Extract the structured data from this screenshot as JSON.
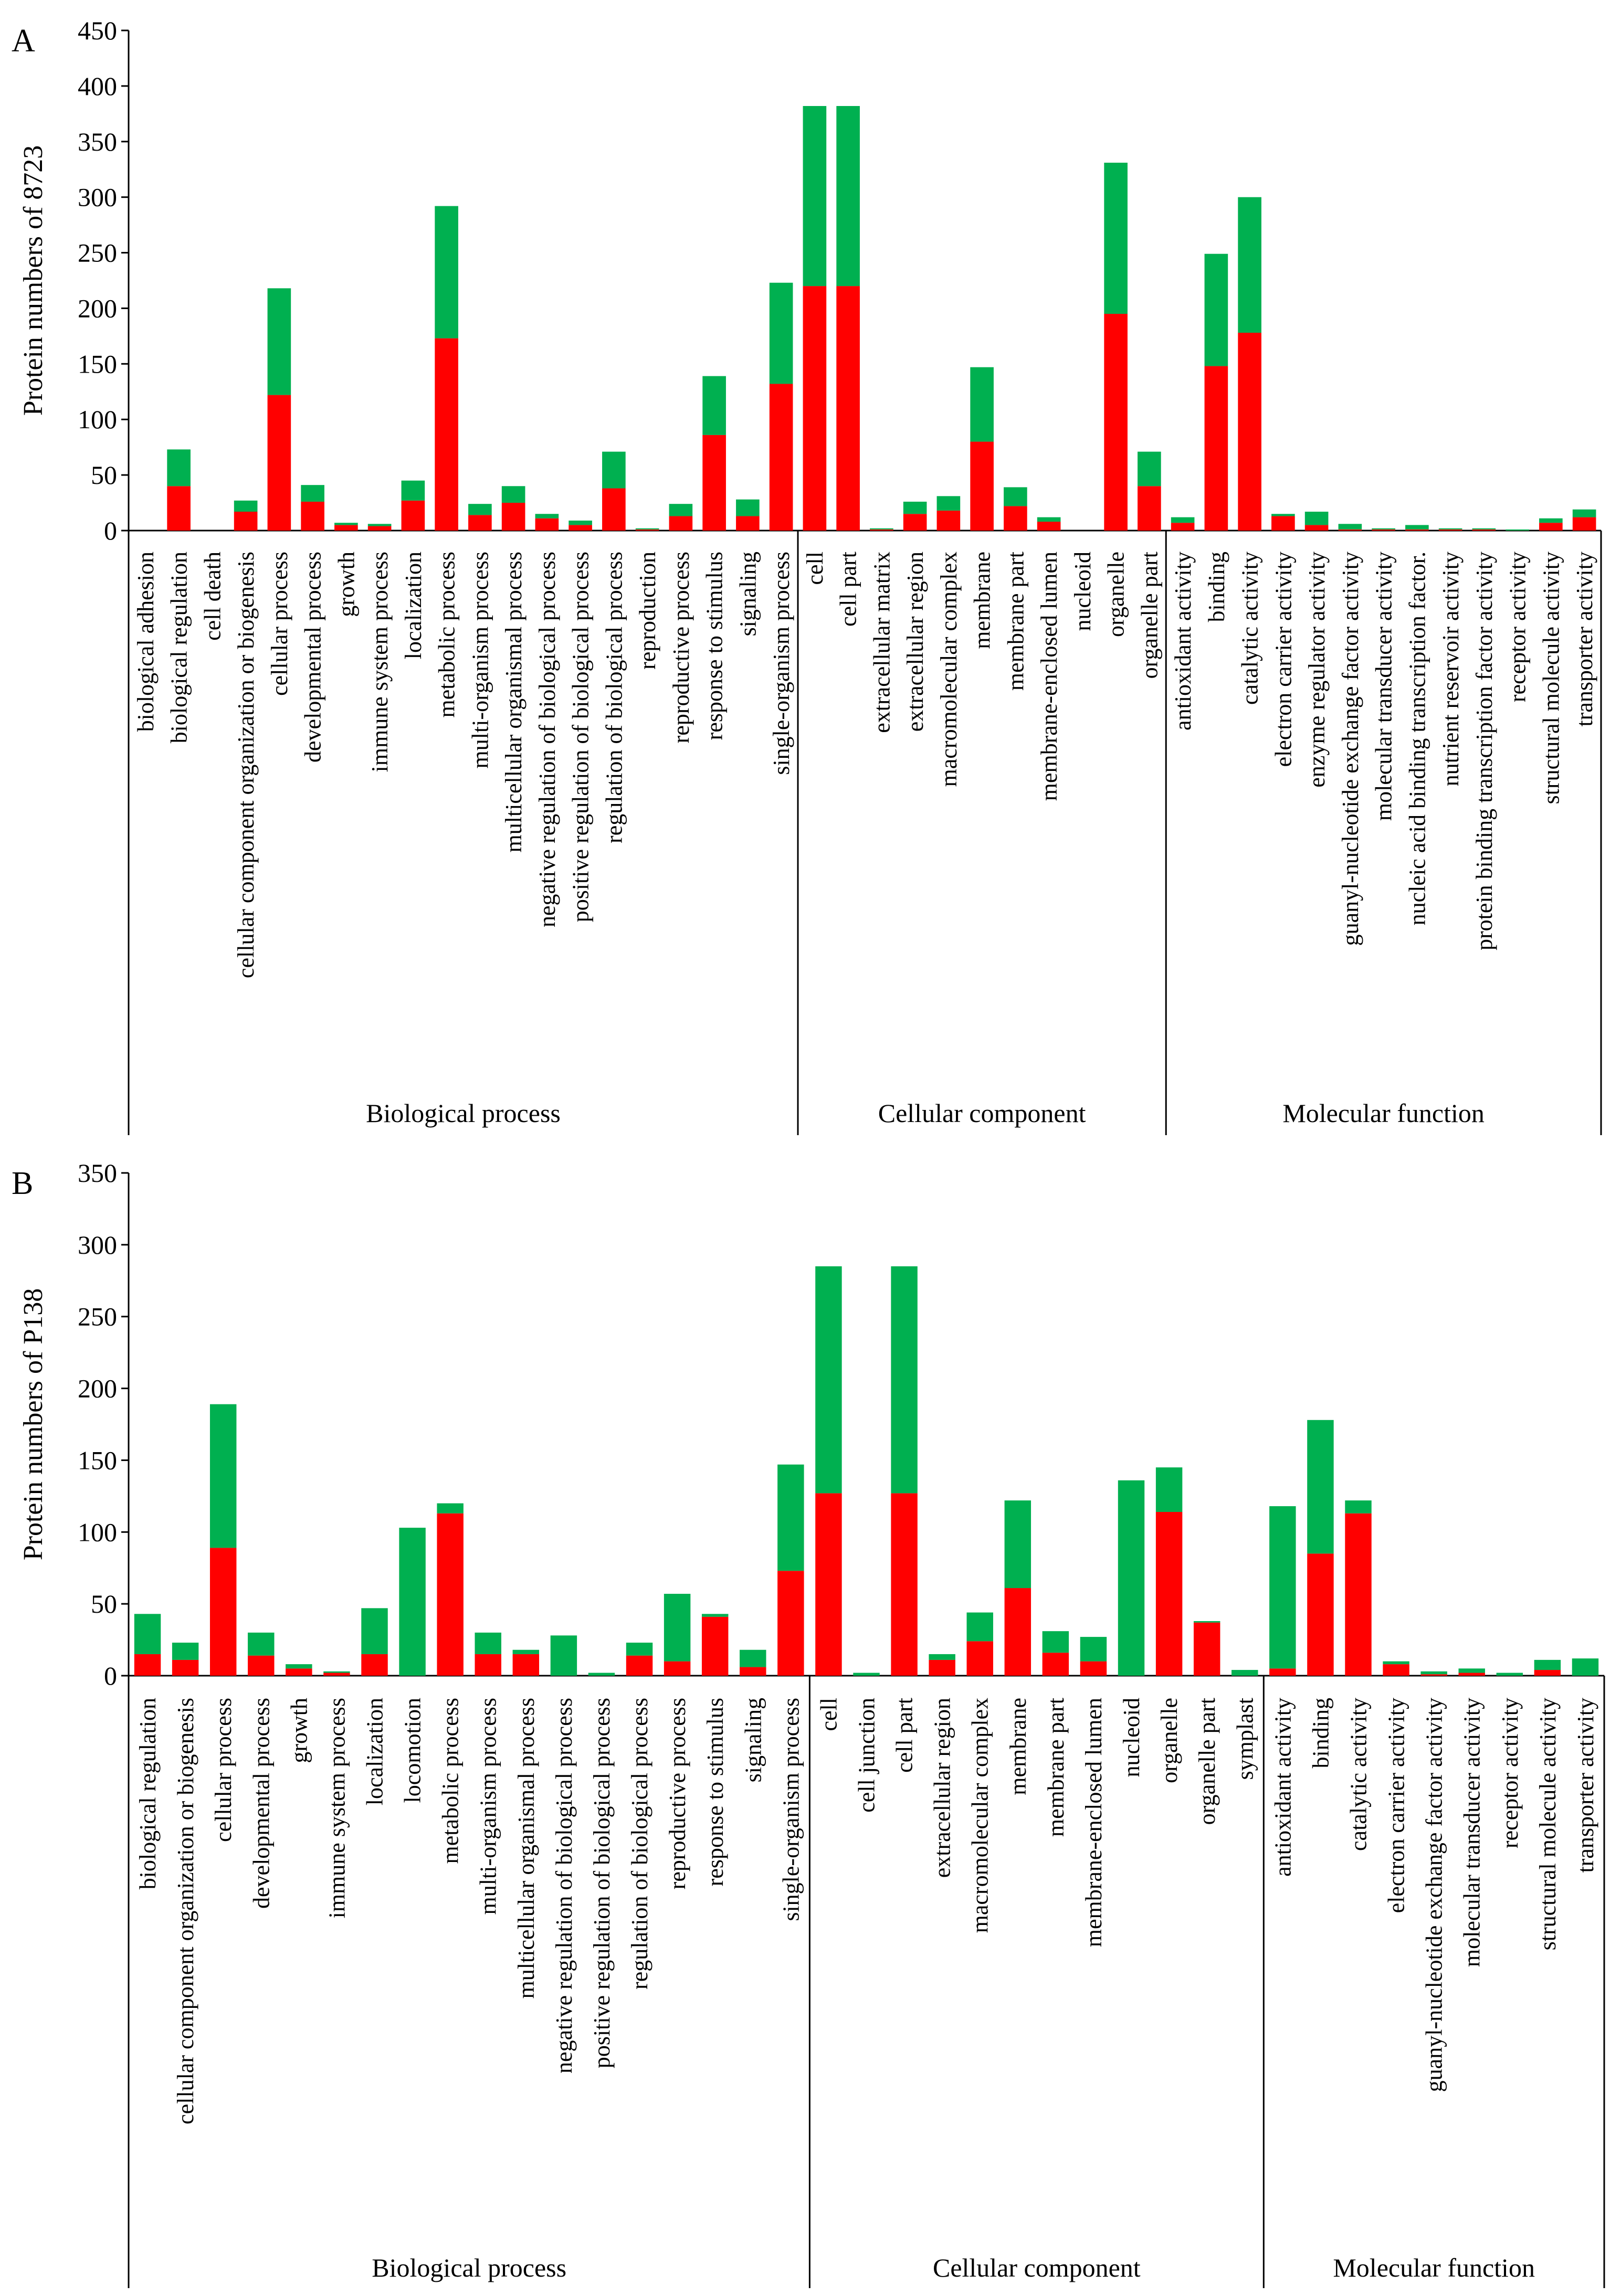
{
  "colors": {
    "lower": "#FF0000",
    "upper": "#00B050",
    "axis": "#000000"
  },
  "chart_data": [
    {
      "type": "bar",
      "stacked": true,
      "panel_label": "A",
      "ylabel": "Protein numbers of 8723",
      "ylim": [
        0,
        450
      ],
      "yticks": [
        0,
        50,
        100,
        150,
        200,
        250,
        300,
        350,
        400,
        450
      ],
      "grid": false,
      "groups": [
        {
          "name": "Biological process",
          "start": 0,
          "count": 20
        },
        {
          "name": "Cellular component",
          "start": 20,
          "count": 11
        },
        {
          "name": "Molecular function",
          "start": 31,
          "count": 13
        }
      ],
      "categories": [
        "biological adhesion",
        "biological regulation",
        "cell death",
        "cellular component organization or biogenesis",
        "cellular process",
        "developmental process",
        "growth",
        "immune system process",
        "localization",
        "metabolic process",
        "multi-organism process",
        "multicellular organismal process",
        "negative regulation of biological process",
        "positive regulation of biological process",
        "regulation of biological process",
        "reproduction",
        "reproductive process",
        "response to stimulus",
        "signaling",
        "single-organism process",
        "cell",
        "cell part",
        "extracellular matrix",
        "extracellular region",
        "macromolecular complex",
        "membrane",
        "membrane part",
        "membrane-enclosed lumen",
        "nucleoid",
        "organelle",
        "organelle part",
        "antioxidant activity",
        "binding",
        "catalytic activity",
        "electron carrier activity",
        "enzyme regulator activity",
        "guanyl-nucleotide exchange factor activity",
        "molecular transducer activity",
        "nucleic acid binding transcription factor.",
        "nutrient reservoir activity",
        "protein binding transcription factor activity",
        "receptor activity",
        "structural molecule activity",
        "transporter activity"
      ],
      "series": [
        {
          "values": [
            0,
            40,
            0,
            17,
            122,
            26,
            5,
            4,
            27,
            173,
            14,
            25,
            11,
            5,
            38,
            1,
            13,
            86,
            13,
            132,
            220,
            220,
            1,
            15,
            18,
            80,
            22,
            8,
            0,
            195,
            40,
            7,
            148,
            178,
            13,
            5,
            1,
            1,
            1,
            1,
            1,
            0,
            7,
            12
          ]
        },
        {
          "values": [
            0,
            33,
            0,
            10,
            96,
            15,
            2,
            2,
            18,
            119,
            10,
            15,
            4,
            4,
            33,
            1,
            11,
            53,
            15,
            91,
            162,
            162,
            1,
            11,
            13,
            67,
            17,
            4,
            0,
            136,
            31,
            5,
            101,
            122,
            2,
            12,
            5,
            1,
            4,
            1,
            1,
            1,
            4,
            7
          ]
        }
      ]
    },
    {
      "type": "bar",
      "stacked": true,
      "panel_label": "B",
      "ylabel": "Protein numbers of P138",
      "ylim": [
        0,
        350
      ],
      "yticks": [
        0,
        50,
        100,
        150,
        200,
        250,
        300,
        350
      ],
      "grid": false,
      "groups": [
        {
          "name": "Biological process",
          "start": 0,
          "count": 18
        },
        {
          "name": "Cellular component",
          "start": 18,
          "count": 12
        },
        {
          "name": "Molecular function",
          "start": 30,
          "count": 9
        }
      ],
      "categories": [
        "biological regulation",
        "cellular component organization or biogenesis",
        "cellular process",
        "developmental process",
        "growth",
        "immune system process",
        "localization",
        "locomotion",
        "metabolic process",
        "multi-organism process",
        "multicellular organismal process",
        "negative regulation of biological process",
        "positive regulation of biological process",
        "regulation of biological process",
        "reproductive process",
        "response to stimulus",
        "signaling",
        "single-organism process",
        "cell",
        "cell junction",
        "cell part",
        "extracellular region",
        "macromolecular complex",
        "membrane",
        "membrane part",
        "membrane-enclosed lumen",
        "nucleoid",
        "organelle",
        "organelle part",
        "symplast",
        "antioxidant activity",
        "binding",
        "catalytic activity",
        "electron carrier activity",
        "guanyl-nucleotide exchange factor activity",
        "molecular transducer activity",
        "receptor activity",
        "structural molecule activity",
        "transporter activity"
      ],
      "series": [
        {
          "values": [
            15,
            11,
            89,
            14,
            5,
            2,
            15,
            0,
            113,
            15,
            15,
            0,
            0,
            14,
            10,
            41,
            6,
            73,
            127,
            0,
            127,
            11,
            24,
            61,
            16,
            10,
            0,
            114,
            37,
            0,
            5,
            85,
            113,
            8,
            1,
            2,
            0,
            4,
            0
          ]
        },
        {
          "values": [
            28,
            12,
            100,
            16,
            3,
            1,
            32,
            103,
            7,
            15,
            3,
            28,
            2,
            9,
            47,
            2,
            12,
            74,
            158,
            2,
            158,
            4,
            20,
            61,
            15,
            17,
            136,
            31,
            1,
            4,
            113,
            93,
            9,
            2,
            2,
            3,
            2,
            7,
            12
          ]
        }
      ]
    }
  ]
}
